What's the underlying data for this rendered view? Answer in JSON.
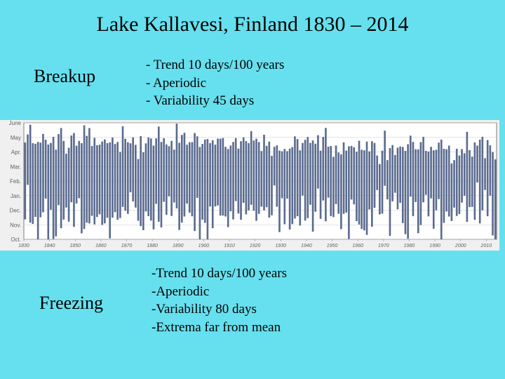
{
  "title": "Lake Kallavesi, Finland 1830 – 2014",
  "breakup": {
    "label": "Breakup",
    "bullets": [
      "Trend 10 days/100 years",
      "Aperiodic",
      "Variability 45 days"
    ]
  },
  "freezing": {
    "label": "Freezing",
    "bullets": [
      "Trend 10 days/100 years",
      "Aperiodic",
      "Variability 80 days",
      "Extrema far from mean"
    ]
  },
  "chart": {
    "type": "bar",
    "background_color": "#F0F0F0",
    "plot_background": "#FFFFFF",
    "grid_color": "#C8C8C8",
    "axis_color": "#808080",
    "bar_color": "#5B6B8F",
    "tick_label_color": "#606060",
    "tick_fontsize": 8,
    "y_labels": [
      "Oct.",
      "Nov.",
      "Dec.",
      "Jan.",
      "Feb.",
      "Mar.",
      "Apr.",
      "May",
      "June"
    ],
    "y_range": [
      0,
      8
    ],
    "x_range_years": [
      1830,
      2014
    ],
    "x_tick_step_years": 10,
    "n_bars": 184,
    "bar_bottom_mean": 1.4,
    "bar_top_mean": 6.9,
    "bar_bottom_var": 0.9,
    "bar_top_var": 0.5,
    "trend_bottom_per100": 0.33,
    "trend_top_per100": -0.33,
    "bar_width_ratio": 0.72,
    "seed": 1830
  }
}
